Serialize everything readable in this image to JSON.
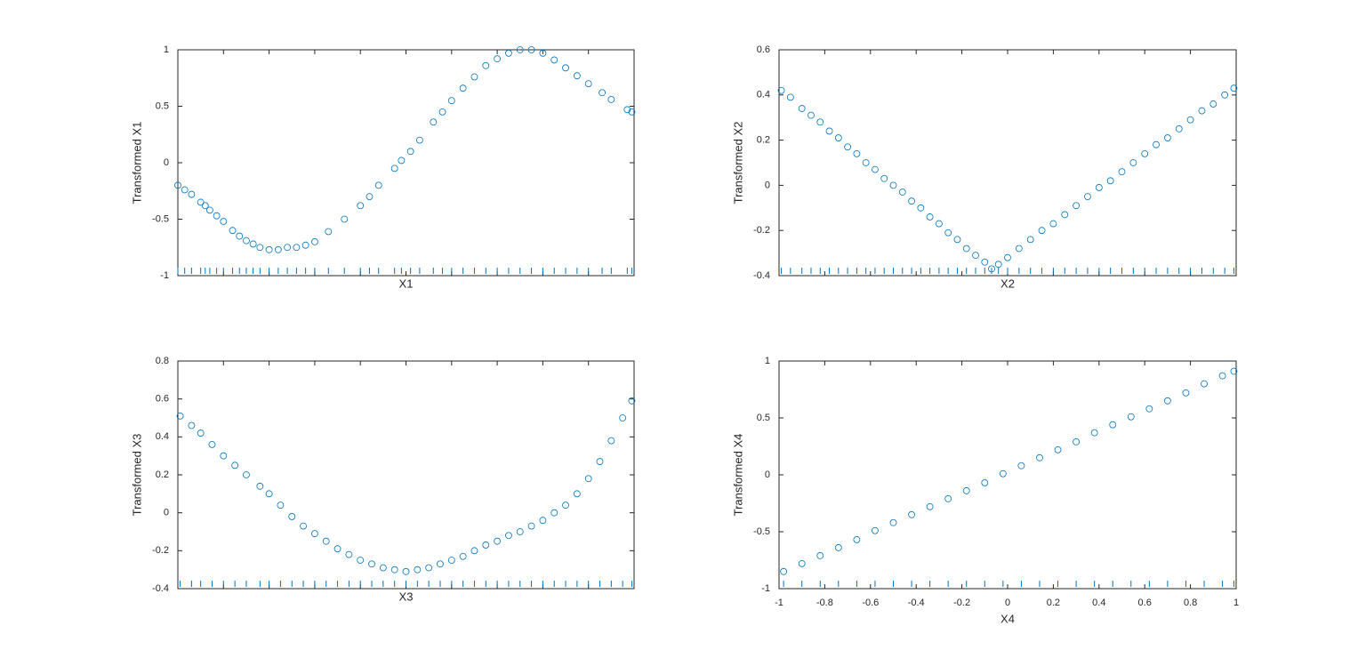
{
  "chart_data": [
    {
      "type": "scatter",
      "xlabel": "X1",
      "ylabel": "Transformed X1",
      "color": "#0072bd",
      "rug": true,
      "show_xtick_labels": false,
      "xlim": [
        -1,
        1
      ],
      "ylim": [
        -1,
        1
      ],
      "xticks": [
        -1,
        -0.8,
        -0.6,
        -0.4,
        -0.2,
        0,
        0.2,
        0.4,
        0.6,
        0.8,
        1
      ],
      "yticks": [
        -1,
        -0.5,
        0,
        0.5,
        1
      ],
      "x": [
        -1,
        -0.97,
        -0.94,
        -0.9,
        -0.88,
        -0.86,
        -0.83,
        -0.8,
        -0.76,
        -0.73,
        -0.7,
        -0.67,
        -0.64,
        -0.6,
        -0.56,
        -0.52,
        -0.48,
        -0.44,
        -0.4,
        -0.34,
        -0.27,
        -0.2,
        -0.16,
        -0.12,
        -0.05,
        -0.02,
        0.02,
        0.06,
        0.12,
        0.16,
        0.2,
        0.25,
        0.3,
        0.35,
        0.4,
        0.45,
        0.5,
        0.55,
        0.6,
        0.65,
        0.7,
        0.75,
        0.8,
        0.86,
        0.9,
        0.97,
        0.99
      ],
      "y": [
        -0.2,
        -0.24,
        -0.28,
        -0.35,
        -0.38,
        -0.42,
        -0.47,
        -0.52,
        -0.6,
        -0.65,
        -0.69,
        -0.72,
        -0.75,
        -0.77,
        -0.77,
        -0.75,
        -0.75,
        -0.73,
        -0.7,
        -0.61,
        -0.5,
        -0.38,
        -0.3,
        -0.2,
        -0.05,
        0.02,
        0.1,
        0.2,
        0.36,
        0.45,
        0.55,
        0.66,
        0.76,
        0.86,
        0.92,
        0.97,
        1.0,
        1.0,
        0.97,
        0.91,
        0.84,
        0.77,
        0.7,
        0.62,
        0.56,
        0.47,
        0.45
      ]
    },
    {
      "type": "scatter",
      "xlabel": "X2",
      "ylabel": "Transformed X2",
      "color": "#0072bd",
      "rug": true,
      "show_xtick_labels": false,
      "xlim": [
        -1,
        1
      ],
      "ylim": [
        -0.4,
        0.6
      ],
      "xticks": [
        -1,
        -0.8,
        -0.6,
        -0.4,
        -0.2,
        0,
        0.2,
        0.4,
        0.6,
        0.8,
        1
      ],
      "yticks": [
        -0.4,
        -0.2,
        0,
        0.2,
        0.4,
        0.6
      ],
      "x": [
        -0.99,
        -0.95,
        -0.9,
        -0.86,
        -0.82,
        -0.78,
        -0.74,
        -0.7,
        -0.66,
        -0.62,
        -0.58,
        -0.54,
        -0.5,
        -0.46,
        -0.42,
        -0.38,
        -0.34,
        -0.3,
        -0.26,
        -0.22,
        -0.18,
        -0.14,
        -0.1,
        -0.07,
        -0.04,
        0,
        0.05,
        0.1,
        0.15,
        0.2,
        0.25,
        0.3,
        0.35,
        0.4,
        0.45,
        0.5,
        0.55,
        0.6,
        0.65,
        0.7,
        0.75,
        0.8,
        0.85,
        0.9,
        0.95,
        0.99
      ],
      "y": [
        0.42,
        0.39,
        0.34,
        0.31,
        0.28,
        0.24,
        0.21,
        0.17,
        0.14,
        0.1,
        0.07,
        0.03,
        0,
        -0.03,
        -0.07,
        -0.1,
        -0.14,
        -0.17,
        -0.21,
        -0.24,
        -0.28,
        -0.31,
        -0.34,
        -0.37,
        -0.35,
        -0.32,
        -0.28,
        -0.24,
        -0.2,
        -0.17,
        -0.13,
        -0.09,
        -0.05,
        -0.01,
        0.02,
        0.06,
        0.1,
        0.14,
        0.18,
        0.21,
        0.25,
        0.29,
        0.33,
        0.36,
        0.4,
        0.43
      ]
    },
    {
      "type": "scatter",
      "xlabel": "X3",
      "ylabel": "Transformed X3",
      "color": "#0072bd",
      "rug": true,
      "show_xtick_labels": false,
      "xlim": [
        -1,
        1
      ],
      "ylim": [
        -0.4,
        0.8
      ],
      "xticks": [
        -1,
        -0.8,
        -0.6,
        -0.4,
        -0.2,
        0,
        0.2,
        0.4,
        0.6,
        0.8,
        1
      ],
      "yticks": [
        -0.4,
        -0.2,
        0,
        0.2,
        0.4,
        0.6,
        0.8
      ],
      "x": [
        -0.99,
        -0.94,
        -0.9,
        -0.85,
        -0.8,
        -0.75,
        -0.7,
        -0.64,
        -0.6,
        -0.55,
        -0.5,
        -0.45,
        -0.4,
        -0.35,
        -0.3,
        -0.25,
        -0.2,
        -0.15,
        -0.1,
        -0.05,
        0,
        0.05,
        0.1,
        0.15,
        0.2,
        0.25,
        0.3,
        0.35,
        0.4,
        0.45,
        0.5,
        0.55,
        0.6,
        0.65,
        0.7,
        0.75,
        0.8,
        0.85,
        0.9,
        0.95,
        0.99
      ],
      "y": [
        0.51,
        0.46,
        0.42,
        0.36,
        0.3,
        0.25,
        0.2,
        0.14,
        0.1,
        0.04,
        -0.02,
        -0.07,
        -0.11,
        -0.15,
        -0.19,
        -0.22,
        -0.25,
        -0.27,
        -0.29,
        -0.3,
        -0.31,
        -0.3,
        -0.29,
        -0.27,
        -0.25,
        -0.23,
        -0.2,
        -0.17,
        -0.15,
        -0.12,
        -0.1,
        -0.07,
        -0.04,
        0,
        0.04,
        0.1,
        0.18,
        0.27,
        0.38,
        0.5,
        0.59
      ]
    },
    {
      "type": "scatter",
      "xlabel": "X4",
      "ylabel": "Transformed X4",
      "color": "#0072bd",
      "rug": true,
      "show_xtick_labels": true,
      "xlim": [
        -1,
        1
      ],
      "ylim": [
        -1,
        1
      ],
      "xticks": [
        -1,
        -0.8,
        -0.6,
        -0.4,
        -0.2,
        0,
        0.2,
        0.4,
        0.6,
        0.8,
        1
      ],
      "yticks": [
        -1,
        -0.5,
        0,
        0.5,
        1
      ],
      "x": [
        -0.98,
        -0.9,
        -0.82,
        -0.74,
        -0.66,
        -0.58,
        -0.5,
        -0.42,
        -0.34,
        -0.26,
        -0.18,
        -0.1,
        -0.02,
        0.06,
        0.14,
        0.22,
        0.3,
        0.38,
        0.46,
        0.54,
        0.62,
        0.7,
        0.78,
        0.86,
        0.94,
        0.99
      ],
      "y": [
        -0.85,
        -0.78,
        -0.71,
        -0.64,
        -0.57,
        -0.49,
        -0.42,
        -0.35,
        -0.28,
        -0.21,
        -0.14,
        -0.07,
        0.01,
        0.08,
        0.15,
        0.22,
        0.29,
        0.37,
        0.44,
        0.51,
        0.58,
        0.65,
        0.72,
        0.8,
        0.87,
        0.91
      ]
    }
  ]
}
